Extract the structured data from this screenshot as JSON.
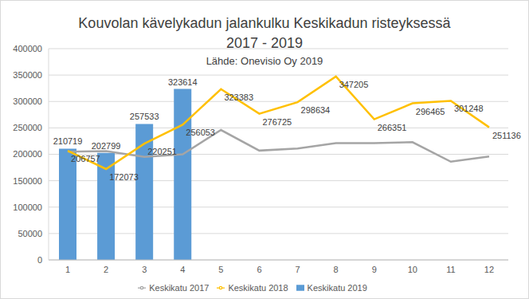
{
  "chart_data": {
    "type": "bar",
    "title": "Kouvolan kävelykadun jalankulku Keskikadun risteyksessä\n2017 - 2019",
    "subtitle": "Lähde: Onevisio Oy 2019",
    "categories": [
      "1",
      "2",
      "3",
      "4",
      "5",
      "6",
      "7",
      "8",
      "9",
      "10",
      "11",
      "12"
    ],
    "series": [
      {
        "name": "Keskikatu 2019",
        "type": "bar",
        "color": "#5b9bd5",
        "data_labels": true,
        "values": [
          210719,
          202799,
          257533,
          323614,
          null,
          null,
          null,
          null,
          null,
          null,
          null,
          null
        ]
      },
      {
        "name": "Keskikatu 2017",
        "type": "line",
        "color": "#a5a5a5",
        "marker": "none",
        "data_labels": false,
        "values": [
          205000,
          206000,
          195000,
          200000,
          246000,
          207000,
          211000,
          221000,
          221000,
          223000,
          186000,
          196000
        ]
      },
      {
        "name": "Keskikatu 2018",
        "type": "line",
        "color": "#ffc000",
        "marker": "none",
        "data_labels": true,
        "values": [
          206757,
          172073,
          220251,
          256053,
          323383,
          276725,
          298634,
          347205,
          266351,
          296465,
          301248,
          251136
        ]
      }
    ],
    "ylim": [
      0,
      400000
    ],
    "yticks": [
      0,
      50000,
      100000,
      150000,
      200000,
      250000,
      300000,
      350000,
      400000
    ],
    "grid": true,
    "legend": "bottom"
  }
}
